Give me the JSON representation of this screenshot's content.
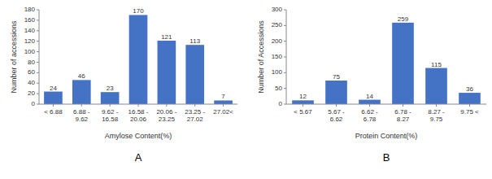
{
  "chart_data": [
    {
      "type": "bar",
      "title": "A",
      "categories": [
        "< 6.88",
        "6.88 - 9.62",
        "9.62 - 16.58",
        "16.58 -\n20.06",
        "20.06 -\n23.25",
        "23.25 -\n27.02",
        "27.02<"
      ],
      "values": [
        24,
        46,
        23,
        170,
        121,
        113,
        7
      ],
      "color": "#4472C4",
      "xlabel": "Amylose Content(%)",
      "ylabel": "Number of accessions",
      "ylim": [
        0,
        180
      ],
      "yticks": [
        0,
        20,
        40,
        60,
        80,
        100,
        120,
        140,
        160,
        180
      ],
      "data_labels": true,
      "grid": false
    },
    {
      "type": "bar",
      "title": "B",
      "categories": [
        "< 5.67",
        "5.67 - 6.62",
        "6.62 - 6.78",
        "6.78 - 8.27",
        "8.27 - 9.75",
        "9.75 <"
      ],
      "values": [
        12,
        75,
        14,
        259,
        115,
        36
      ],
      "color": "#4472C4",
      "xlabel": "Protein Content(%)",
      "ylabel": "Number of Accessions",
      "ylim": [
        0,
        300
      ],
      "yticks": [
        0,
        50,
        100,
        150,
        200,
        250,
        300
      ],
      "data_labels": true,
      "grid": false
    }
  ]
}
